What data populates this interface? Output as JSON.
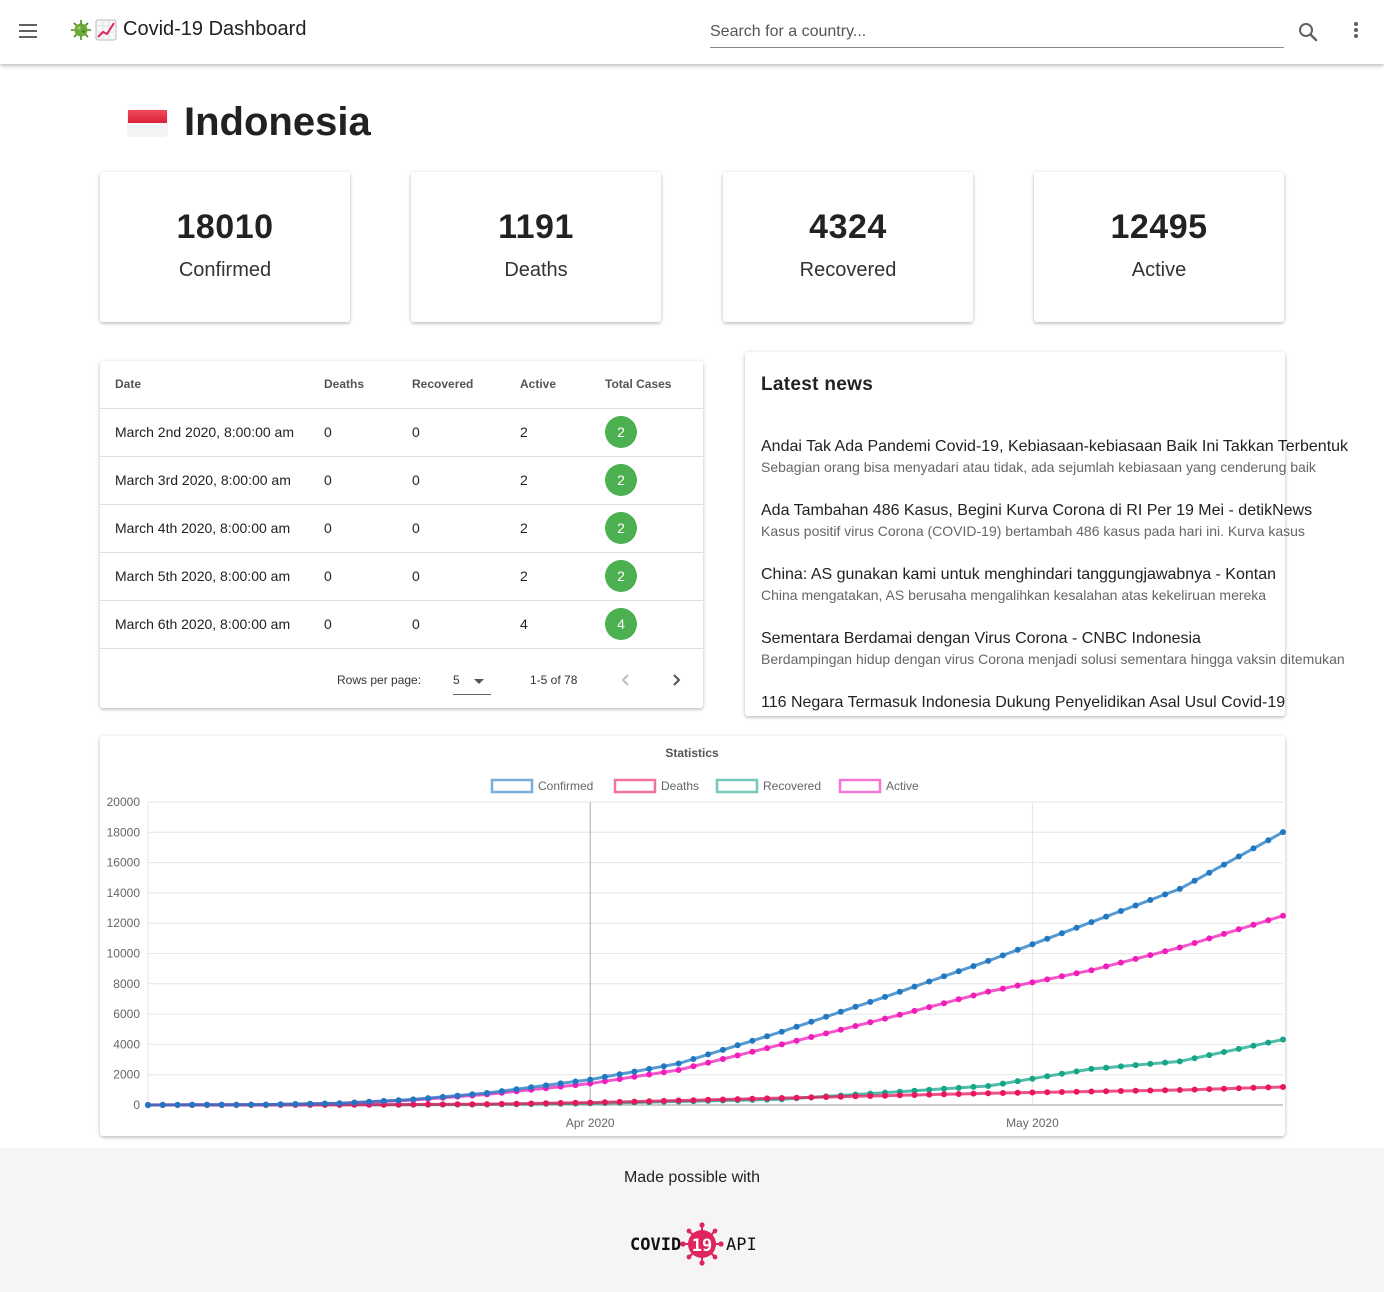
{
  "app": {
    "title": "Covid-19 Dashboard"
  },
  "search": {
    "placeholder": "Search for a country..."
  },
  "country": {
    "name": "Indonesia"
  },
  "stats": [
    {
      "value": "18010",
      "label": "Confirmed"
    },
    {
      "value": "1191",
      "label": "Deaths"
    },
    {
      "value": "4324",
      "label": "Recovered"
    },
    {
      "value": "12495",
      "label": "Active"
    }
  ],
  "table": {
    "headers": [
      "Date",
      "Deaths",
      "Recovered",
      "Active",
      "Total Cases"
    ],
    "rows": [
      {
        "date": "March 2nd 2020, 8:00:00 am",
        "deaths": "0",
        "recovered": "0",
        "active": "2",
        "total": "2"
      },
      {
        "date": "March 3rd 2020, 8:00:00 am",
        "deaths": "0",
        "recovered": "0",
        "active": "2",
        "total": "2"
      },
      {
        "date": "March 4th 2020, 8:00:00 am",
        "deaths": "0",
        "recovered": "0",
        "active": "2",
        "total": "2"
      },
      {
        "date": "March 5th 2020, 8:00:00 am",
        "deaths": "0",
        "recovered": "0",
        "active": "2",
        "total": "2"
      },
      {
        "date": "March 6th 2020, 8:00:00 am",
        "deaths": "0",
        "recovered": "0",
        "active": "4",
        "total": "4"
      }
    ],
    "pagination": {
      "rows_per_page_label": "Rows per page:",
      "rows_per_page": "5",
      "range": "1-5 of 78"
    }
  },
  "news": {
    "heading": "Latest news",
    "items": [
      {
        "title": "Andai Tak Ada Pandemi Covid-19, Kebiasaan-kebiasaan Baik Ini Takkan Terbentuk",
        "desc": "Sebagian orang bisa menyadari atau tidak, ada sejumlah kebiasaan yang cenderung baik"
      },
      {
        "title": "Ada Tambahan 486 Kasus, Begini Kurva Corona di RI Per 19 Mei - detikNews",
        "desc": "Kasus positif virus Corona (COVID-19) bertambah 486 kasus pada hari ini. Kurva kasus"
      },
      {
        "title": "China: AS gunakan kami untuk menghindari tanggungjawabnya - Kontan",
        "desc": "China mengatakan, AS berusaha mengalihkan kesalahan atas kekeliruan mereka"
      },
      {
        "title": "Sementara Berdamai dengan Virus Corona - CNBC Indonesia",
        "desc": "Berdampingan hidup dengan virus Corona menjadi solusi sementara hingga vaksin ditemukan"
      },
      {
        "title": "116 Negara Termasuk Indonesia Dukung Penyelidikan Asal Usul Covid-19",
        "desc": ""
      }
    ]
  },
  "chart_data": {
    "type": "line",
    "title": "Statistics",
    "x_start": "2020-03-02",
    "x_end": "2020-05-18",
    "x_ticks": [
      "Apr 2020",
      "May 2020"
    ],
    "ylim": [
      0,
      20000
    ],
    "y_ticks": [
      0,
      2000,
      4000,
      6000,
      8000,
      10000,
      12000,
      14000,
      16000,
      18000,
      20000
    ],
    "legend_position": "top-center",
    "grid": true,
    "series": [
      {
        "name": "Confirmed",
        "color": "#1f78c1",
        "x": [
          "2020-03-02",
          "2020-03-10",
          "2020-03-15",
          "2020-03-20",
          "2020-03-25",
          "2020-04-01",
          "2020-04-07",
          "2020-04-14",
          "2020-04-21",
          "2020-04-28",
          "2020-05-05",
          "2020-05-11",
          "2020-05-18"
        ],
        "values": [
          2,
          27,
          117,
          369,
          790,
          1677,
          2738,
          4839,
          7135,
          9511,
          12071,
          14265,
          18010
        ]
      },
      {
        "name": "Deaths",
        "color": "#e8175d",
        "x": [
          "2020-03-02",
          "2020-03-15",
          "2020-03-25",
          "2020-04-01",
          "2020-04-14",
          "2020-04-28",
          "2020-05-11",
          "2020-05-18"
        ],
        "values": [
          0,
          5,
          58,
          157,
          459,
          773,
          991,
          1191
        ]
      },
      {
        "name": "Recovered",
        "color": "#17a589",
        "x": [
          "2020-03-02",
          "2020-03-15",
          "2020-03-25",
          "2020-04-01",
          "2020-04-14",
          "2020-04-28",
          "2020-05-05",
          "2020-05-11",
          "2020-05-18"
        ],
        "values": [
          0,
          8,
          31,
          103,
          380,
          1254,
          2381,
          2881,
          4324
        ]
      },
      {
        "name": "Active",
        "color": "#f01dba",
        "x": [
          "2020-03-02",
          "2020-03-10",
          "2020-03-15",
          "2020-03-20",
          "2020-03-25",
          "2020-04-01",
          "2020-04-07",
          "2020-04-14",
          "2020-04-21",
          "2020-04-28",
          "2020-05-05",
          "2020-05-11",
          "2020-05-18"
        ],
        "values": [
          2,
          27,
          104,
          328,
          701,
          1417,
          2313,
          4000,
          5700,
          7484,
          8900,
          10393,
          12495
        ]
      }
    ]
  },
  "footer": {
    "made": "Made possible with",
    "api_left": "COVID",
    "api_mid": "19",
    "api_right": "API"
  }
}
